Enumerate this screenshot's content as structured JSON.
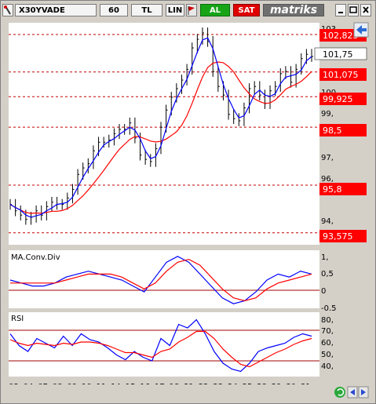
{
  "toolbar": {
    "symbol": "X30YVADE",
    "period": "60",
    "currency": "TL",
    "scale": "LIN",
    "buy_label": "AL",
    "sell_label": "SAT",
    "brand": "matriks"
  },
  "colors": {
    "background": "#ffffff",
    "panel_frame": "#d4d0c8",
    "bars": "#000000",
    "ma_short": "#0000ff",
    "ma_long": "#ff0000",
    "level_badge": "#ff0000",
    "current_badge": "#ffffff"
  },
  "price_panel": {
    "y_ticks": [
      "103,",
      "101,75",
      "100,",
      "99,",
      "97,",
      "96,",
      "95,",
      "94,"
    ],
    "levels": [
      "102,825",
      "101,075",
      "99,925",
      "98,5",
      "95,8",
      "93,575"
    ],
    "current_price": "101,75"
  },
  "macd_panel": {
    "title": "MA.Conv.Div",
    "y_ticks": [
      "1,",
      "0,5",
      "0",
      "-0,5"
    ]
  },
  "rsi_panel": {
    "title": "RSI",
    "y_ticks": [
      "80,",
      "70,",
      "60,",
      "50,",
      "40,"
    ]
  },
  "x_axis": {
    "labels": [
      "03",
      "04",
      "07",
      "08",
      "09",
      "10",
      "11",
      "14",
      "15",
      "16",
      "17",
      "18",
      "21",
      "22",
      "23",
      "24",
      "25",
      "28",
      "29",
      "30",
      "31"
    ]
  },
  "chart_data": [
    {
      "type": "line",
      "title": "",
      "series": [
        {
          "name": "",
          "values": [
            94.9,
            94.6,
            94.4,
            94.2,
            94.3,
            94.6,
            94.4,
            94.8,
            95.0,
            94.9,
            94.9,
            95.2,
            95.6,
            96.3,
            96.6,
            96.8,
            97.4,
            97.8,
            97.8,
            97.9,
            98.2,
            98.4,
            98.4,
            98.7,
            98.0,
            97.2,
            97.0,
            96.9,
            97.5,
            98.5,
            99.3,
            99.9,
            100.3,
            100.7,
            101.2,
            102.2,
            102.6,
            102.9,
            102.5,
            101.1,
            100.4,
            100.0,
            99.1,
            98.9,
            98.8,
            99.4,
            100.3,
            100.4,
            100.0,
            99.6,
            100.2,
            100.4,
            101.0,
            101.1,
            100.6,
            101.2,
            101.7,
            101.9,
            101.8
          ]
        }
      ],
      "ylim": [
        93.2,
        103.3
      ]
    },
    {
      "type": "line",
      "title": "MA.Conv.Div",
      "series": [
        {
          "name": "",
          "values": [
            0.3,
            0.2,
            0.1,
            0.1,
            0.2,
            0.4,
            0.5,
            0.6,
            0.5,
            0.4,
            0.3,
            0.1,
            -0.1,
            0.4,
            0.9,
            1.1,
            0.9,
            0.5,
            0.1,
            -0.3,
            -0.5,
            -0.4,
            -0.1,
            0.3,
            0.5,
            0.4,
            0.6,
            0.5
          ]
        },
        {
          "name": "",
          "values": [
            0.2,
            0.2,
            0.2,
            0.2,
            0.2,
            0.3,
            0.4,
            0.5,
            0.5,
            0.5,
            0.4,
            0.2,
            0.0,
            0.2,
            0.6,
            0.9,
            1.0,
            0.8,
            0.4,
            0.0,
            -0.3,
            -0.4,
            -0.3,
            0.0,
            0.2,
            0.3,
            0.4,
            0.5
          ]
        }
      ],
      "ylim": [
        -0.6,
        1.2
      ]
    },
    {
      "type": "line",
      "title": "RSI",
      "series": [
        {
          "name": "",
          "values": [
            70,
            60,
            55,
            66,
            62,
            58,
            68,
            60,
            70,
            65,
            63,
            58,
            52,
            48,
            55,
            50,
            47,
            66,
            60,
            78,
            75,
            82,
            70,
            55,
            45,
            40,
            38,
            45,
            55,
            58,
            60,
            62,
            67,
            70,
            68
          ]
        },
        {
          "name": "",
          "values": [
            65,
            62,
            60,
            62,
            61,
            60,
            62,
            61,
            63,
            63,
            62,
            60,
            57,
            54,
            54,
            52,
            50,
            55,
            57,
            63,
            67,
            72,
            72,
            66,
            57,
            50,
            44,
            42,
            46,
            50,
            54,
            57,
            61,
            64,
            66
          ]
        }
      ],
      "ylim": [
        35,
        85
      ]
    }
  ]
}
